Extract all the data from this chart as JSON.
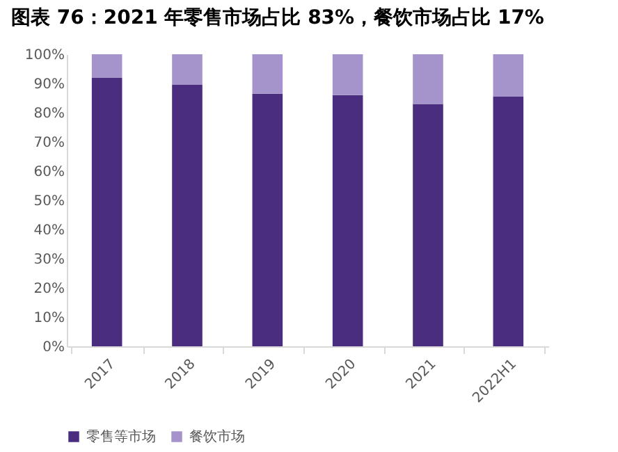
{
  "chart_data": {
    "type": "bar",
    "title": "图表 76：2021 年零售市场占比 83%，餐饮市场占比 17%",
    "categories": [
      "2017",
      "2018",
      "2019",
      "2020",
      "2021",
      "2022H1"
    ],
    "stacked": true,
    "series": [
      {
        "name": "零售等市场",
        "color": "#4b2d7f",
        "values": [
          92,
          89.5,
          86.5,
          86,
          83,
          85.5
        ]
      },
      {
        "name": "餐饮市场",
        "color": "#a594cc",
        "values": [
          8,
          10.5,
          13.5,
          14,
          17,
          14.5
        ]
      }
    ],
    "ylim": [
      0,
      100
    ],
    "yticks": [
      {
        "value": 0,
        "label": "0%"
      },
      {
        "value": 10,
        "label": "10%"
      },
      {
        "value": 20,
        "label": "20%"
      },
      {
        "value": 30,
        "label": "30%"
      },
      {
        "value": 40,
        "label": "40%"
      },
      {
        "value": 50,
        "label": "50%"
      },
      {
        "value": 60,
        "label": "60%"
      },
      {
        "value": 70,
        "label": "70%"
      },
      {
        "value": 80,
        "label": "80%"
      },
      {
        "value": 90,
        "label": "90%"
      },
      {
        "value": 100,
        "label": "100%"
      }
    ],
    "grid": false,
    "legend": "bottom"
  }
}
